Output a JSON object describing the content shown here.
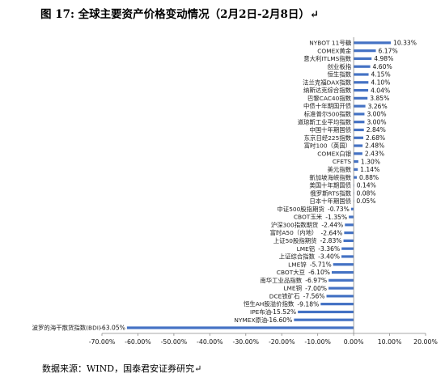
{
  "title": "图 17: 全球主要资产价格变动情况（2月2日-2月8日）↵",
  "source": "数据来源：WIND，国泰君安证券研究↵",
  "colors": {
    "bar": "#4472C4",
    "axis": "#888888"
  },
  "chart_data": {
    "type": "bar",
    "orientation": "horizontal",
    "categories": [
      "NYBOT 11号糖",
      "COMEX黄金",
      "意大利ITLMS指数",
      "创业板指",
      "恒生指数",
      "法兰克福DAX指数",
      "纳斯达克综合指数",
      "巴黎CAC40指数",
      "中债十年期国开债",
      "标准普尔500指数",
      "道琼斯工业平均指数",
      "中国十年期国债",
      "东京日经225指数",
      "富时100（英国）",
      "COMEX白银",
      "CFETS",
      "美元指数",
      "新加坡海峡指数",
      "美国十年期国债",
      "俄罗斯RTS指数",
      "日本十年期国债",
      "中证500股指期货",
      "CBOT玉米",
      "沪深300指数期货",
      "富时A50（内地）",
      "上证50股指期货",
      "LME铝",
      "上证综合指数",
      "LME锌",
      "CBOT大豆",
      "南华工业品指数",
      "LME铜",
      "DCE铁矿石",
      "恒生AH股溢价指数",
      "IPE布油",
      "NYMEX原油",
      "波罗的海干散货指数(BDI)"
    ],
    "values": [
      10.33,
      6.17,
      4.98,
      4.6,
      4.15,
      4.1,
      4.04,
      3.85,
      3.26,
      3.0,
      3.0,
      2.84,
      2.68,
      2.48,
      2.43,
      1.3,
      1.14,
      0.88,
      0.14,
      0.08,
      0.05,
      -0.73,
      -1.35,
      -2.44,
      -2.64,
      -2.83,
      -3.36,
      -3.4,
      -5.71,
      -6.1,
      -6.97,
      -7.0,
      -7.56,
      -9.18,
      -15.52,
      -16.6,
      -63.05
    ],
    "value_labels": [
      "10.33%",
      "6.17%",
      "4.98%",
      "4.60%",
      "4.15%",
      "4.10%",
      "4.04%",
      "3.85%",
      "3.26%",
      "3.00%",
      "3.00%",
      "2.84%",
      "2.68%",
      "2.48%",
      "2.43%",
      "1.30%",
      "1.14%",
      "0.88%",
      "0.14%",
      "0.08%",
      "0.05%",
      "-0.73%",
      "-1.35%",
      "-2.44%",
      "-2.64%",
      "-2.83%",
      "-3.36%",
      "-3.40%",
      "-5.71%",
      "-6.10%",
      "-6.97%",
      "-7.00%",
      "-7.56%",
      "-9.18%",
      "-15.52%",
      "-16.60%",
      "-63.05%"
    ],
    "xlim": [
      -70,
      20
    ],
    "xticks": [
      -70,
      -60,
      -50,
      -40,
      -30,
      -20,
      -10,
      0,
      10,
      20
    ],
    "xtick_labels": [
      "-70.00%",
      "-60.00%",
      "-50.00%",
      "-40.00%",
      "-30.00%",
      "-20.00%",
      "-10.00%",
      "0.00%",
      "10.00%",
      "20.00%"
    ],
    "grid": false,
    "legend": "none"
  }
}
